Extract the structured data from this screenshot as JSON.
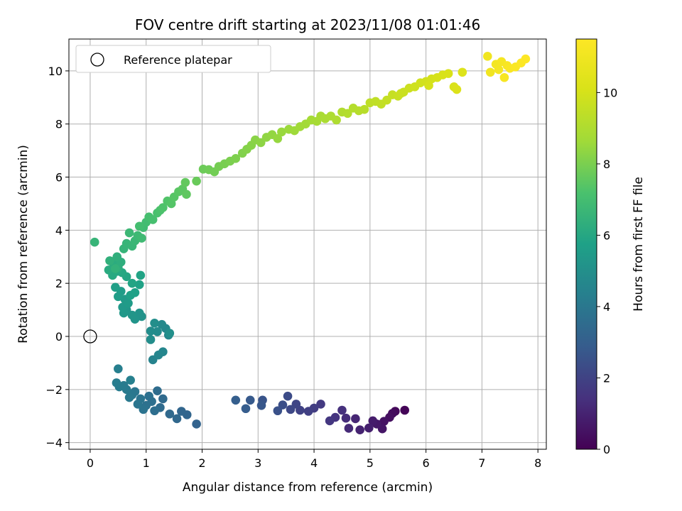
{
  "chart_data": {
    "type": "scatter",
    "title": "FOV centre drift starting at 2023/11/08 01:01:46",
    "xlabel": "Angular distance from reference (arcmin)",
    "ylabel": "Rotation from reference (arcmin)",
    "xlim": [
      -0.38,
      8.15
    ],
    "ylim": [
      -4.25,
      11.2
    ],
    "xticks": [
      0,
      1,
      2,
      3,
      4,
      5,
      6,
      7,
      8
    ],
    "yticks": [
      -4,
      -2,
      0,
      2,
      4,
      6,
      8,
      10
    ],
    "grid": true,
    "legend": {
      "position": "top-left",
      "entries": [
        "Reference platepar"
      ]
    },
    "reference_point": {
      "x": 0,
      "y": 0
    },
    "colorbar": {
      "label": "Hours from first FF file",
      "colormap": "viridis",
      "range": [
        0,
        11.5
      ],
      "ticks": [
        0,
        2,
        4,
        6,
        8,
        10
      ]
    },
    "series": [
      {
        "points": [
          [
            5.62,
            -2.78,
            0.1
          ],
          [
            5.45,
            -2.82,
            0.2
          ],
          [
            5.4,
            -2.9,
            0.3
          ],
          [
            5.35,
            -3.05,
            0.4
          ],
          [
            5.25,
            -3.2,
            0.5
          ],
          [
            5.22,
            -3.48,
            0.6
          ],
          [
            5.12,
            -3.3,
            0.7
          ],
          [
            5.05,
            -3.18,
            0.8
          ],
          [
            4.98,
            -3.45,
            0.9
          ],
          [
            4.82,
            -3.52,
            1.0
          ],
          [
            4.74,
            -3.1,
            1.1
          ],
          [
            4.62,
            -3.46,
            1.2
          ],
          [
            4.57,
            -3.08,
            1.3
          ],
          [
            4.5,
            -2.78,
            1.4
          ],
          [
            4.38,
            -3.05,
            1.5
          ],
          [
            4.28,
            -3.18,
            1.6
          ],
          [
            4.12,
            -2.55,
            1.7
          ],
          [
            4.0,
            -2.7,
            1.8
          ],
          [
            3.9,
            -2.82,
            1.9
          ],
          [
            3.75,
            -2.78,
            2.0
          ],
          [
            3.68,
            -2.55,
            2.1
          ],
          [
            3.58,
            -2.75,
            2.2
          ],
          [
            3.53,
            -2.25,
            2.3
          ],
          [
            3.44,
            -2.58,
            2.4
          ],
          [
            3.35,
            -2.8,
            2.5
          ],
          [
            3.08,
            -2.4,
            2.6
          ],
          [
            3.06,
            -2.6,
            2.7
          ],
          [
            2.86,
            -2.4,
            2.8
          ],
          [
            2.78,
            -2.72,
            2.9
          ],
          [
            2.6,
            -2.4,
            3.0
          ],
          [
            1.9,
            -3.3,
            3.15
          ],
          [
            1.73,
            -2.95,
            3.25
          ],
          [
            1.63,
            -2.82,
            3.3
          ],
          [
            1.55,
            -3.1,
            3.35
          ],
          [
            1.42,
            -2.92,
            3.4
          ],
          [
            1.3,
            -2.35,
            3.45
          ],
          [
            1.25,
            -2.68,
            3.5
          ],
          [
            1.2,
            -2.05,
            3.55
          ],
          [
            1.15,
            -2.8,
            3.6
          ],
          [
            1.1,
            -2.45,
            3.65
          ],
          [
            1.05,
            -2.25,
            3.7
          ],
          [
            1.0,
            -2.6,
            3.75
          ],
          [
            0.95,
            -2.75,
            3.8
          ],
          [
            0.9,
            -2.35,
            3.85
          ],
          [
            0.85,
            -2.55,
            3.9
          ],
          [
            0.8,
            -2.08,
            3.95
          ],
          [
            0.75,
            -2.2,
            4.0
          ],
          [
            0.7,
            -2.3,
            4.05
          ],
          [
            0.65,
            -2.0,
            4.1
          ],
          [
            0.6,
            -1.85,
            4.15
          ],
          [
            0.52,
            -1.9,
            4.2
          ],
          [
            0.47,
            -1.75,
            4.25
          ],
          [
            0.5,
            -1.22,
            4.3
          ],
          [
            0.72,
            -1.65,
            4.35
          ],
          [
            1.12,
            -0.88,
            4.5
          ],
          [
            1.22,
            -0.7,
            4.55
          ],
          [
            1.3,
            -0.58,
            4.6
          ],
          [
            1.4,
            0.05,
            4.65
          ],
          [
            1.35,
            0.3,
            4.7
          ],
          [
            1.28,
            0.45,
            4.75
          ],
          [
            1.2,
            0.18,
            4.8
          ],
          [
            1.08,
            0.2,
            4.85
          ],
          [
            1.08,
            -0.12,
            4.9
          ],
          [
            1.15,
            0.5,
            4.95
          ],
          [
            1.42,
            0.12,
            5.0
          ],
          [
            0.92,
            0.75,
            5.1
          ],
          [
            0.88,
            0.88,
            5.15
          ],
          [
            0.8,
            0.65,
            5.2
          ],
          [
            0.75,
            0.8,
            5.25
          ],
          [
            0.65,
            1.0,
            5.3
          ],
          [
            0.6,
            0.88,
            5.35
          ],
          [
            0.58,
            1.1,
            5.4
          ],
          [
            0.62,
            1.4,
            5.45
          ],
          [
            0.68,
            1.25,
            5.5
          ],
          [
            0.55,
            1.7,
            5.55
          ],
          [
            0.5,
            1.5,
            5.6
          ],
          [
            0.45,
            1.85,
            5.65
          ],
          [
            0.72,
            1.55,
            5.7
          ],
          [
            0.8,
            1.65,
            5.75
          ],
          [
            0.88,
            1.95,
            5.8
          ],
          [
            0.9,
            2.3,
            5.85
          ],
          [
            0.75,
            2.0,
            5.9
          ],
          [
            0.65,
            2.25,
            5.95
          ],
          [
            0.57,
            2.4,
            6.0
          ],
          [
            0.48,
            2.45,
            6.05
          ],
          [
            0.4,
            2.3,
            6.1
          ],
          [
            0.33,
            2.5,
            6.15
          ],
          [
            0.42,
            2.72,
            6.2
          ],
          [
            0.5,
            2.6,
            6.25
          ],
          [
            0.55,
            2.8,
            6.3
          ],
          [
            0.48,
            3.0,
            6.35
          ],
          [
            0.35,
            2.85,
            6.4
          ],
          [
            0.45,
            2.55,
            6.45
          ],
          [
            0.6,
            3.3,
            6.55
          ],
          [
            0.65,
            3.5,
            6.6
          ],
          [
            0.75,
            3.4,
            6.65
          ],
          [
            0.8,
            3.6,
            6.7
          ],
          [
            0.7,
            3.9,
            6.75
          ],
          [
            0.85,
            3.8,
            6.8
          ],
          [
            0.92,
            3.7,
            6.85
          ],
          [
            0.95,
            4.1,
            6.9
          ],
          [
            1.0,
            4.3,
            6.95
          ],
          [
            0.88,
            4.15,
            7.0
          ],
          [
            1.05,
            4.5,
            7.05
          ],
          [
            1.12,
            4.4,
            7.1
          ],
          [
            1.2,
            4.65,
            7.15
          ],
          [
            1.25,
            4.75,
            7.2
          ],
          [
            1.3,
            4.85,
            7.25
          ],
          [
            1.38,
            5.1,
            7.3
          ],
          [
            1.45,
            5.0,
            7.35
          ],
          [
            1.5,
            5.25,
            7.4
          ],
          [
            1.58,
            5.45,
            7.45
          ],
          [
            1.65,
            5.55,
            7.5
          ],
          [
            1.72,
            5.35,
            7.55
          ],
          [
            1.7,
            5.8,
            7.6
          ],
          [
            0.08,
            3.55,
            6.6
          ],
          [
            1.9,
            5.85,
            7.7
          ],
          [
            2.02,
            6.3,
            7.75
          ],
          [
            2.12,
            6.28,
            7.8
          ],
          [
            2.22,
            6.2,
            7.85
          ],
          [
            2.3,
            6.4,
            7.9
          ],
          [
            2.4,
            6.5,
            7.95
          ],
          [
            2.5,
            6.6,
            8.0
          ],
          [
            2.6,
            6.7,
            8.05
          ],
          [
            2.72,
            6.9,
            8.1
          ],
          [
            2.8,
            7.05,
            8.15
          ],
          [
            2.88,
            7.2,
            8.2
          ],
          [
            2.95,
            7.4,
            8.25
          ],
          [
            3.05,
            7.3,
            8.3
          ],
          [
            3.15,
            7.5,
            8.35
          ],
          [
            3.25,
            7.6,
            8.4
          ],
          [
            3.35,
            7.45,
            8.45
          ],
          [
            3.42,
            7.7,
            8.5
          ],
          [
            3.55,
            7.8,
            8.55
          ],
          [
            3.65,
            7.75,
            8.6
          ],
          [
            3.75,
            7.9,
            8.65
          ],
          [
            3.85,
            8.0,
            8.7
          ],
          [
            3.95,
            8.15,
            8.75
          ],
          [
            4.05,
            8.1,
            8.8
          ],
          [
            4.12,
            8.3,
            8.85
          ],
          [
            4.2,
            8.2,
            8.9
          ],
          [
            4.3,
            8.3,
            8.95
          ],
          [
            4.4,
            8.15,
            9.0
          ],
          [
            4.5,
            8.45,
            9.05
          ],
          [
            4.6,
            8.4,
            9.1
          ],
          [
            4.7,
            8.6,
            9.15
          ],
          [
            4.8,
            8.5,
            9.2
          ],
          [
            4.9,
            8.55,
            9.25
          ],
          [
            5.0,
            8.8,
            9.4
          ],
          [
            5.1,
            8.85,
            9.45
          ],
          [
            5.2,
            8.75,
            9.5
          ],
          [
            5.3,
            8.9,
            9.55
          ],
          [
            5.4,
            9.1,
            9.6
          ],
          [
            5.5,
            9.05,
            9.65
          ],
          [
            5.6,
            9.2,
            9.7
          ],
          [
            5.7,
            9.35,
            9.75
          ],
          [
            5.8,
            9.4,
            9.8
          ],
          [
            5.9,
            9.55,
            9.85
          ],
          [
            6.0,
            9.6,
            9.9
          ],
          [
            6.1,
            9.7,
            9.95
          ],
          [
            6.2,
            9.75,
            10.0
          ],
          [
            6.3,
            9.85,
            10.05
          ],
          [
            6.4,
            9.9,
            10.1
          ],
          [
            6.5,
            9.4,
            10.15
          ],
          [
            6.55,
            9.3,
            10.2
          ],
          [
            6.65,
            9.95,
            10.25
          ],
          [
            5.55,
            9.15,
            9.7
          ],
          [
            6.05,
            9.45,
            10.0
          ],
          [
            7.1,
            10.55,
            11.0
          ],
          [
            7.15,
            9.95,
            11.05
          ],
          [
            7.25,
            10.25,
            11.1
          ],
          [
            7.3,
            10.05,
            11.15
          ],
          [
            7.35,
            10.35,
            11.2
          ],
          [
            7.4,
            9.75,
            11.25
          ],
          [
            7.45,
            10.2,
            11.3
          ],
          [
            7.5,
            10.1,
            11.35
          ],
          [
            7.6,
            10.15,
            11.4
          ],
          [
            7.7,
            10.3,
            11.45
          ],
          [
            7.78,
            10.45,
            11.5
          ]
        ]
      }
    ]
  }
}
